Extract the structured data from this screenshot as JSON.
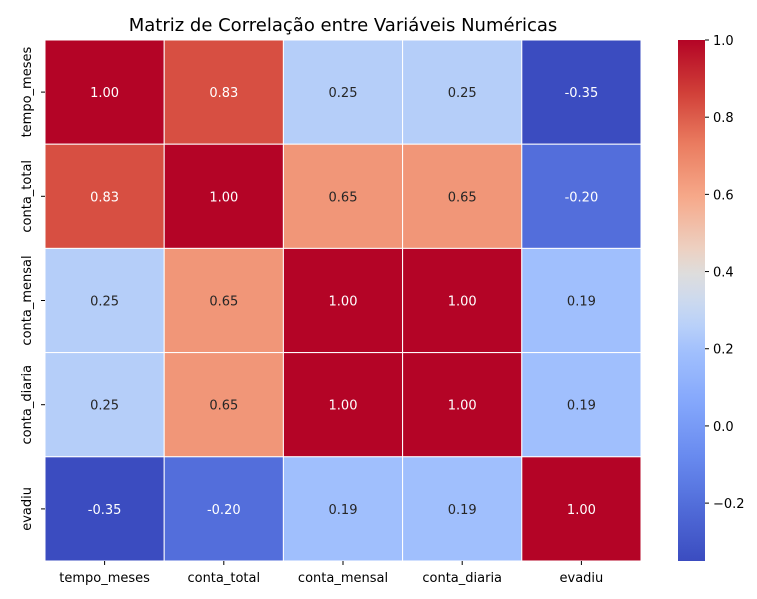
{
  "chart_data": {
    "type": "heatmap",
    "title": "Matriz de Correlação entre Variáveis Numéricas",
    "rows": [
      "tempo_meses",
      "conta_total",
      "conta_mensal",
      "conta_diaria",
      "evadiu"
    ],
    "columns": [
      "tempo_meses",
      "conta_total",
      "conta_mensal",
      "conta_diaria",
      "evadiu"
    ],
    "values": [
      [
        1.0,
        0.83,
        0.25,
        0.25,
        -0.35
      ],
      [
        0.83,
        1.0,
        0.65,
        0.65,
        -0.2
      ],
      [
        0.25,
        0.65,
        1.0,
        1.0,
        0.19
      ],
      [
        0.25,
        0.65,
        1.0,
        1.0,
        0.19
      ],
      [
        -0.35,
        -0.2,
        0.19,
        0.19,
        1.0
      ]
    ],
    "value_format": "2 decimals",
    "colormap": "coolwarm",
    "vmin": -0.35,
    "vmax": 1.0,
    "colorbar_ticks": [
      1.0,
      0.8,
      0.6,
      0.4,
      0.2,
      0.0,
      -0.2
    ],
    "colorbar_labels": [
      "1.0",
      "0.8",
      "0.6",
      "0.4",
      "0.2",
      "0.0",
      "−0.2"
    ],
    "grid": "white cell borders",
    "legend": "colorbar-right"
  }
}
